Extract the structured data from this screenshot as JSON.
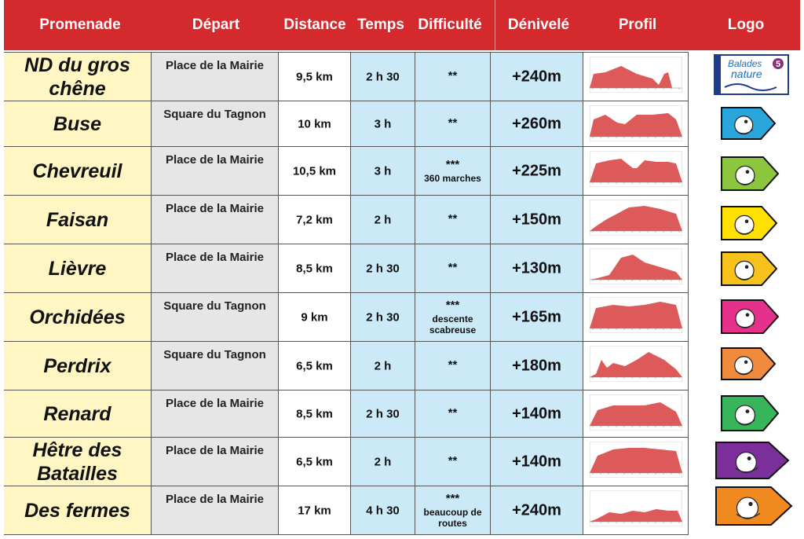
{
  "headers": {
    "promenade": "Promenade",
    "depart": "Départ",
    "distance": "Distance",
    "temps": "Temps",
    "difficulte": "Difficulté",
    "denivele": "Dénivelé",
    "profil": "Profil",
    "logo": "Logo"
  },
  "colors": {
    "header_bg": "#d42a2e",
    "promenade_bg": "#fff6c3",
    "depart_bg": "#e6e6e6",
    "time_bg": "#cbe9f7",
    "profile_fill": "#dc5a5a"
  },
  "logo_badge": {
    "line1": "Balades",
    "line2": "nature",
    "number": "5"
  },
  "rows": [
    {
      "promenade": "ND du gros chêne",
      "depart": "Place de la Mairie",
      "distance": "9,5 km",
      "temps": "2 h 30",
      "stars": "**",
      "note": "",
      "denivele": "+240m",
      "logo_color": "#1f3c8c",
      "logo_icon": "balades-nature-badge-icon"
    },
    {
      "promenade": "Buse",
      "depart": "Square du Tagnon",
      "distance": "10 km",
      "temps": "3 h",
      "stars": "**",
      "note": "",
      "denivele": "+260m",
      "logo_color": "#2aa6dc",
      "logo_icon": "buzzard-icon"
    },
    {
      "promenade": "Chevreuil",
      "depart": "Place de la Mairie",
      "distance": "10,5 km",
      "temps": "3 h",
      "stars": "***",
      "note": "360 marches",
      "denivele": "+225m",
      "logo_color": "#8cc63f",
      "logo_icon": "roe-deer-icon"
    },
    {
      "promenade": "Faisan",
      "depart": "Place de la Mairie",
      "distance": "7,2 km",
      "temps": "2 h",
      "stars": "**",
      "note": "",
      "denivele": "+150m",
      "logo_color": "#ffe000",
      "logo_icon": "pheasant-icon"
    },
    {
      "promenade": "Lièvre",
      "depart": "Place de la Mairie",
      "distance": "8,5 km",
      "temps": "2 h 30",
      "stars": "**",
      "note": "",
      "denivele": "+130m",
      "logo_color": "#f7c21b",
      "logo_icon": "hare-icon"
    },
    {
      "promenade": "Orchidées",
      "depart": "Square du Tagnon",
      "distance": "9 km",
      "temps": "2 h 30",
      "stars": "***",
      "note": "descente scabreuse",
      "denivele": "+165m",
      "logo_color": "#e5308c",
      "logo_icon": "orchid-icon"
    },
    {
      "promenade": "Perdrix",
      "depart": "Square du Tagnon",
      "distance": "6,5 km",
      "temps": "2 h",
      "stars": "**",
      "note": "",
      "denivele": "+180m",
      "logo_color": "#f08a3c",
      "logo_icon": "partridge-icon"
    },
    {
      "promenade": "Renard",
      "depart": "Place de la Mairie",
      "distance": "8,5 km",
      "temps": "2 h 30",
      "stars": "**",
      "note": "",
      "denivele": "+140m",
      "logo_color": "#38b45a",
      "logo_icon": "fox-icon"
    },
    {
      "promenade": "Hêtre des Batailles",
      "depart": "Place de la Mairie",
      "distance": "6,5 km",
      "temps": "2 h",
      "stars": "**",
      "note": "",
      "denivele": "+140m",
      "logo_color": "#7b2f9b",
      "logo_icon": "beech-tree-icon"
    },
    {
      "promenade": "Des fermes",
      "depart": "Place de la Mairie",
      "distance": "17 km",
      "temps": "4 h 30",
      "stars": "***",
      "note": "beaucoup de routes",
      "denivele": "+240m",
      "logo_color": "#f08a1e",
      "logo_icon": "farm-icon"
    }
  ]
}
